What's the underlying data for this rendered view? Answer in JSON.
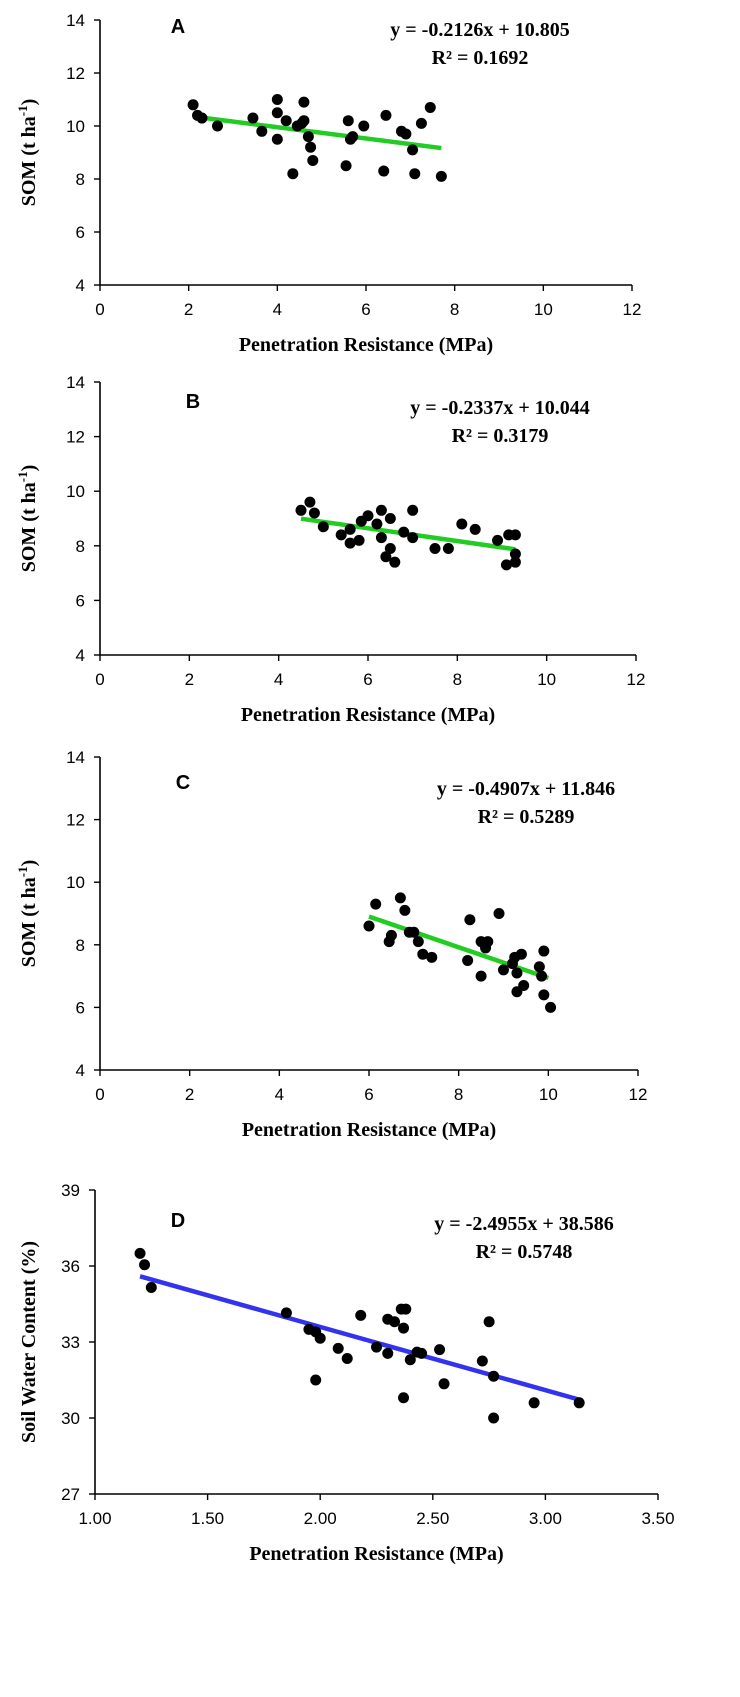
{
  "chart_data": [
    {
      "type": "scatter",
      "panel": "A",
      "xlabel": "Penetration Resistance (MPa)",
      "ylabel": "SOM (t ha",
      "ylabel_sup": "-1",
      "ylabel_close": ")",
      "xlim": [
        0,
        12
      ],
      "ylim": [
        4,
        14
      ],
      "xticks": [
        "0",
        "2",
        "4",
        "6",
        "8",
        "10",
        "12"
      ],
      "yticks": [
        "4",
        "6",
        "8",
        "10",
        "12",
        "14"
      ],
      "trendline": {
        "equation": "y = -0.2126x + 10.805",
        "r2": "R² = 0.1692",
        "slope": -0.2126,
        "intercept": 10.805,
        "x_range": [
          2.1,
          7.7
        ],
        "color": "#22cc22"
      },
      "points": [
        [
          2.1,
          10.8
        ],
        [
          2.2,
          10.4
        ],
        [
          2.3,
          10.3
        ],
        [
          2.65,
          10.0
        ],
        [
          3.45,
          10.3
        ],
        [
          3.65,
          9.8
        ],
        [
          4.0,
          11.0
        ],
        [
          4.0,
          10.5
        ],
        [
          4.0,
          9.5
        ],
        [
          4.2,
          10.2
        ],
        [
          4.35,
          8.2
        ],
        [
          4.45,
          10.0
        ],
        [
          4.55,
          10.1
        ],
        [
          4.6,
          10.2
        ],
        [
          4.6,
          10.9
        ],
        [
          4.7,
          9.6
        ],
        [
          4.75,
          9.2
        ],
        [
          4.8,
          8.7
        ],
        [
          5.55,
          8.5
        ],
        [
          5.6,
          10.2
        ],
        [
          5.65,
          9.5
        ],
        [
          5.7,
          9.6
        ],
        [
          5.95,
          10.0
        ],
        [
          6.4,
          8.3
        ],
        [
          6.45,
          10.4
        ],
        [
          6.8,
          9.8
        ],
        [
          6.9,
          9.7
        ],
        [
          7.05,
          9.1
        ],
        [
          7.1,
          8.2
        ],
        [
          7.25,
          10.1
        ],
        [
          7.45,
          10.7
        ],
        [
          7.7,
          8.1
        ]
      ]
    },
    {
      "type": "scatter",
      "panel": "B",
      "xlabel": "Penetration Resistance (MPa)",
      "ylabel": "SOM (t ha",
      "ylabel_sup": "-1",
      "ylabel_close": ")",
      "xlim": [
        0,
        12
      ],
      "ylim": [
        4,
        14
      ],
      "xticks": [
        "0",
        "2",
        "4",
        "6",
        "8",
        "10",
        "12"
      ],
      "yticks": [
        "4",
        "6",
        "8",
        "10",
        "12",
        "14"
      ],
      "trendline": {
        "equation": "y = -0.2337x + 10.044",
        "r2": "R² = 0.3179",
        "slope": -0.2337,
        "intercept": 10.044,
        "x_range": [
          4.5,
          9.3
        ],
        "color": "#22cc22"
      },
      "points": [
        [
          4.5,
          9.3
        ],
        [
          4.7,
          9.6
        ],
        [
          4.8,
          9.2
        ],
        [
          5.0,
          8.7
        ],
        [
          5.4,
          8.4
        ],
        [
          5.6,
          8.6
        ],
        [
          5.6,
          8.1
        ],
        [
          5.8,
          8.2
        ],
        [
          5.85,
          8.9
        ],
        [
          6.0,
          9.1
        ],
        [
          6.2,
          8.8
        ],
        [
          6.3,
          8.3
        ],
        [
          6.3,
          9.3
        ],
        [
          6.4,
          7.6
        ],
        [
          6.5,
          7.9
        ],
        [
          6.5,
          9.0
        ],
        [
          6.6,
          7.4
        ],
        [
          6.8,
          8.5
        ],
        [
          7.0,
          8.3
        ],
        [
          7.0,
          9.3
        ],
        [
          7.5,
          7.9
        ],
        [
          7.8,
          7.9
        ],
        [
          8.1,
          8.8
        ],
        [
          8.4,
          8.6
        ],
        [
          8.9,
          8.2
        ],
        [
          9.1,
          7.3
        ],
        [
          9.15,
          8.4
        ],
        [
          9.3,
          8.4
        ],
        [
          9.3,
          7.7
        ],
        [
          9.3,
          7.4
        ]
      ]
    },
    {
      "type": "scatter",
      "panel": "C",
      "xlabel": "Penetration Resistance (MPa)",
      "ylabel": "SOM (t ha",
      "ylabel_sup": "-1",
      "ylabel_close": ")",
      "xlim": [
        0,
        12
      ],
      "ylim": [
        4,
        14
      ],
      "xticks": [
        "0",
        "2",
        "4",
        "6",
        "8",
        "10",
        "12"
      ],
      "yticks": [
        "4",
        "6",
        "8",
        "10",
        "12",
        "14"
      ],
      "trendline": {
        "equation": "y = -0.4907x + 11.846",
        "r2": "R² = 0.5289",
        "slope": -0.4907,
        "intercept": 11.846,
        "x_range": [
          6.0,
          10.0
        ],
        "color": "#22cc22"
      },
      "points": [
        [
          6.0,
          8.6
        ],
        [
          6.15,
          9.3
        ],
        [
          6.45,
          8.1
        ],
        [
          6.5,
          8.3
        ],
        [
          6.7,
          9.5
        ],
        [
          6.8,
          9.1
        ],
        [
          6.9,
          8.4
        ],
        [
          7.0,
          8.4
        ],
        [
          7.1,
          8.1
        ],
        [
          7.2,
          7.7
        ],
        [
          7.4,
          7.6
        ],
        [
          8.2,
          7.5
        ],
        [
          8.25,
          8.8
        ],
        [
          8.5,
          8.1
        ],
        [
          8.5,
          7.0
        ],
        [
          8.6,
          7.9
        ],
        [
          8.65,
          8.1
        ],
        [
          8.9,
          9.0
        ],
        [
          9.0,
          7.2
        ],
        [
          9.2,
          7.4
        ],
        [
          9.25,
          7.6
        ],
        [
          9.3,
          6.5
        ],
        [
          9.3,
          7.1
        ],
        [
          9.4,
          7.7
        ],
        [
          9.45,
          6.7
        ],
        [
          9.8,
          7.3
        ],
        [
          9.85,
          7.0
        ],
        [
          9.9,
          6.4
        ],
        [
          9.9,
          7.8
        ],
        [
          10.05,
          6.0
        ]
      ]
    },
    {
      "type": "scatter",
      "panel": "D",
      "xlabel": "Penetration Resistance (MPa)",
      "ylabel": "Soil Water Content (%)",
      "ylabel_sup": "",
      "ylabel_close": "",
      "xlim": [
        1.0,
        3.5
      ],
      "ylim": [
        27,
        39
      ],
      "xticks": [
        "1.00",
        "1.50",
        "2.00",
        "2.50",
        "3.00",
        "3.50"
      ],
      "yticks": [
        "27",
        "30",
        "33",
        "36",
        "39"
      ],
      "trendline": {
        "equation": "y = -2.4955x + 38.586",
        "r2": "R² = 0.5748",
        "slope": -2.4955,
        "intercept": 38.586,
        "x_range": [
          1.2,
          3.15
        ],
        "color": "#3333ee"
      },
      "points": [
        [
          1.2,
          36.5
        ],
        [
          1.22,
          36.05
        ],
        [
          1.25,
          35.15
        ],
        [
          1.85,
          34.15
        ],
        [
          1.95,
          33.5
        ],
        [
          1.98,
          33.4
        ],
        [
          1.98,
          31.5
        ],
        [
          2.0,
          33.15
        ],
        [
          2.08,
          32.75
        ],
        [
          2.12,
          32.35
        ],
        [
          2.18,
          34.05
        ],
        [
          2.25,
          32.8
        ],
        [
          2.3,
          33.9
        ],
        [
          2.3,
          32.55
        ],
        [
          2.33,
          33.8
        ],
        [
          2.36,
          34.3
        ],
        [
          2.37,
          33.55
        ],
        [
          2.37,
          30.8
        ],
        [
          2.38,
          34.3
        ],
        [
          2.4,
          32.3
        ],
        [
          2.43,
          32.6
        ],
        [
          2.45,
          32.55
        ],
        [
          2.53,
          32.7
        ],
        [
          2.55,
          31.35
        ],
        [
          2.72,
          32.25
        ],
        [
          2.75,
          33.8
        ],
        [
          2.77,
          31.65
        ],
        [
          2.77,
          30.0
        ],
        [
          2.95,
          30.6
        ],
        [
          3.15,
          30.6
        ]
      ]
    }
  ]
}
